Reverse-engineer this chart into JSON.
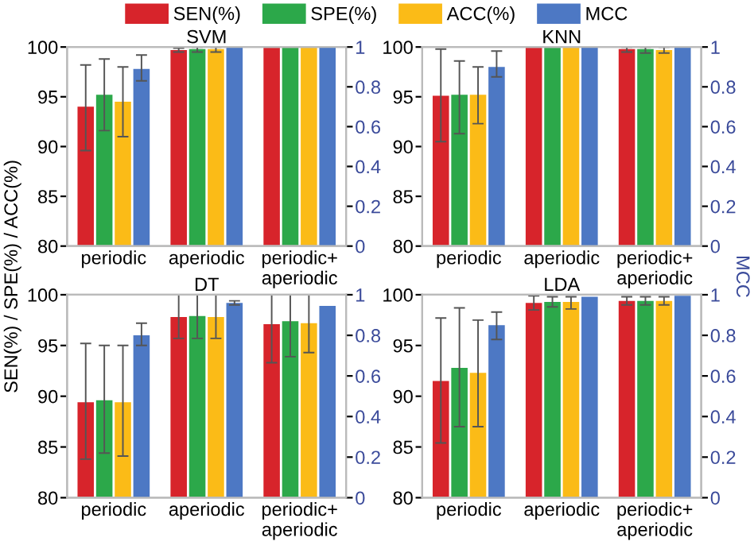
{
  "chart_data": [
    {
      "type": "bar",
      "title": "SVM",
      "ylabel": "SEN(%) / SPE(%) / ACC(%)",
      "legend": "top",
      "categories": [
        "periodic",
        "aperiodic",
        "periodic+\naperiodic"
      ],
      "ylim": [
        80,
        100
      ],
      "yticks": [
        80,
        85,
        90,
        95,
        100
      ],
      "y2lim": [
        0,
        1
      ],
      "y2ticks": [
        0,
        0.2,
        0.4,
        0.6,
        0.8,
        1
      ],
      "grid": false,
      "series": [
        {
          "name": "SEN(%)",
          "color": "#d7242b",
          "values": [
            94.0,
            99.7,
            100
          ],
          "errors": [
            [
              89.6,
              98.2
            ],
            [
              99.5,
              99.9
            ],
            null
          ]
        },
        {
          "name": "SPE(%)",
          "color": "#2ca84a",
          "values": [
            95.2,
            99.8,
            100
          ],
          "errors": [
            [
              91.6,
              98.8
            ],
            [
              99.5,
              100
            ],
            null
          ]
        },
        {
          "name": "ACC(%)",
          "color": "#fbbb17",
          "values": [
            94.5,
            99.8,
            100
          ],
          "errors": [
            [
              91.0,
              98.0
            ],
            [
              99.5,
              100
            ],
            null
          ]
        },
        {
          "name": "MCC",
          "color": "#4d78c4",
          "axis": "y2",
          "values": [
            0.89,
            1,
            1
          ],
          "errors": [
            [
              0.83,
              0.96
            ],
            null,
            null
          ]
        }
      ]
    },
    {
      "type": "bar",
      "title": "KNN",
      "y2label": "MCC",
      "categories": [
        "periodic",
        "aperiodic",
        "periodic+\naperiodic"
      ],
      "ylim": [
        80,
        100
      ],
      "yticks": [
        80,
        85,
        90,
        95,
        100
      ],
      "y2lim": [
        0,
        1
      ],
      "y2ticks": [
        0,
        0.2,
        0.4,
        0.6,
        0.8,
        1
      ],
      "grid": false,
      "series": [
        {
          "color": "#d7242b",
          "values": [
            95.1,
            100,
            99.8
          ],
          "errors": [
            [
              90.5,
              99.8
            ],
            null,
            [
              99.5,
              100
            ]
          ]
        },
        {
          "color": "#2ca84a",
          "values": [
            95.2,
            100,
            99.8
          ],
          "errors": [
            [
              91.3,
              98.6
            ],
            null,
            [
              99.4,
              100
            ]
          ]
        },
        {
          "color": "#fbbb17",
          "values": [
            95.2,
            100,
            99.7
          ],
          "errors": [
            [
              92.3,
              98.0
            ],
            null,
            [
              99.4,
              100
            ]
          ]
        },
        {
          "color": "#4d78c4",
          "axis": "y2",
          "values": [
            0.9,
            1,
            1
          ],
          "errors": [
            [
              0.85,
              0.98
            ],
            null,
            null
          ]
        }
      ]
    },
    {
      "type": "bar",
      "title": "DT",
      "categories": [
        "periodic",
        "aperiodic",
        "periodic+\naperiodic"
      ],
      "ylim": [
        80,
        100
      ],
      "yticks": [
        80,
        85,
        90,
        95,
        100
      ],
      "y2lim": [
        0,
        1
      ],
      "y2ticks": [
        0,
        0.2,
        0.4,
        0.6,
        0.8,
        1
      ],
      "grid": false,
      "series": [
        {
          "color": "#d7242b",
          "values": [
            89.4,
            97.8,
            97.1
          ],
          "errors": [
            [
              83.8,
              95.2
            ],
            [
              95.7,
              100
            ],
            [
              93.3,
              100
            ]
          ]
        },
        {
          "color": "#2ca84a",
          "values": [
            89.6,
            97.9,
            97.4
          ],
          "errors": [
            [
              84.4,
              95.0
            ],
            [
              95.7,
              100
            ],
            [
              93.9,
              100
            ]
          ]
        },
        {
          "color": "#fbbb17",
          "values": [
            89.4,
            97.8,
            97.2
          ],
          "errors": [
            [
              84.1,
              95.0
            ],
            [
              95.7,
              100
            ],
            [
              94.3,
              100
            ]
          ]
        },
        {
          "color": "#4d78c4",
          "axis": "y2",
          "values": [
            0.8,
            0.96,
            0.945
          ],
          "errors": [
            [
              0.75,
              0.86
            ],
            [
              0.95,
              0.97
            ],
            null
          ]
        }
      ]
    },
    {
      "type": "bar",
      "title": "LDA",
      "categories": [
        "periodic",
        "aperiodic",
        "periodic+\naperiodic"
      ],
      "ylim": [
        80,
        100
      ],
      "yticks": [
        80,
        85,
        90,
        95,
        100
      ],
      "y2lim": [
        0,
        1
      ],
      "y2ticks": [
        0,
        0.2,
        0.4,
        0.6,
        0.8,
        1
      ],
      "grid": false,
      "series": [
        {
          "color": "#d7242b",
          "values": [
            91.5,
            99.2,
            99.4
          ],
          "errors": [
            [
              85.4,
              97.7
            ],
            [
              98.5,
              99.9
            ],
            [
              99.0,
              99.8
            ]
          ]
        },
        {
          "color": "#2ca84a",
          "values": [
            92.8,
            99.3,
            99.4
          ],
          "errors": [
            [
              87.0,
              98.7
            ],
            [
              98.8,
              99.8
            ],
            [
              99.0,
              99.8
            ]
          ]
        },
        {
          "color": "#fbbb17",
          "values": [
            92.3,
            99.3,
            99.4
          ],
          "errors": [
            [
              87.0,
              97.5
            ],
            [
              98.6,
              99.8
            ],
            [
              99.0,
              99.8
            ]
          ]
        },
        {
          "color": "#4d78c4",
          "axis": "y2",
          "values": [
            0.85,
            0.99,
            0.995
          ],
          "errors": [
            [
              0.78,
              0.915
            ],
            null,
            null
          ]
        }
      ]
    }
  ]
}
